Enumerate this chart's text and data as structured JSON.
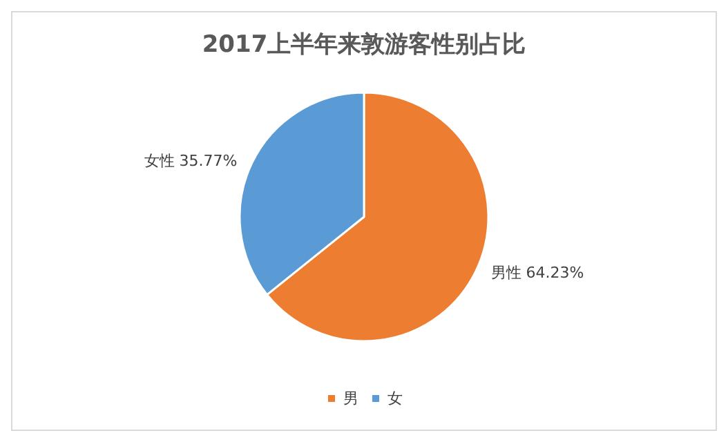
{
  "chart_data": {
    "type": "pie",
    "title": "2017上半年来敦游客性别占比",
    "categories": [
      "男",
      "女"
    ],
    "values": [
      64.23,
      35.77
    ],
    "colors": [
      "#ed7d31",
      "#5b9bd5"
    ],
    "value_labels": [
      "男性 64.23%",
      "女性 35.77%"
    ],
    "legend": "bottom"
  }
}
